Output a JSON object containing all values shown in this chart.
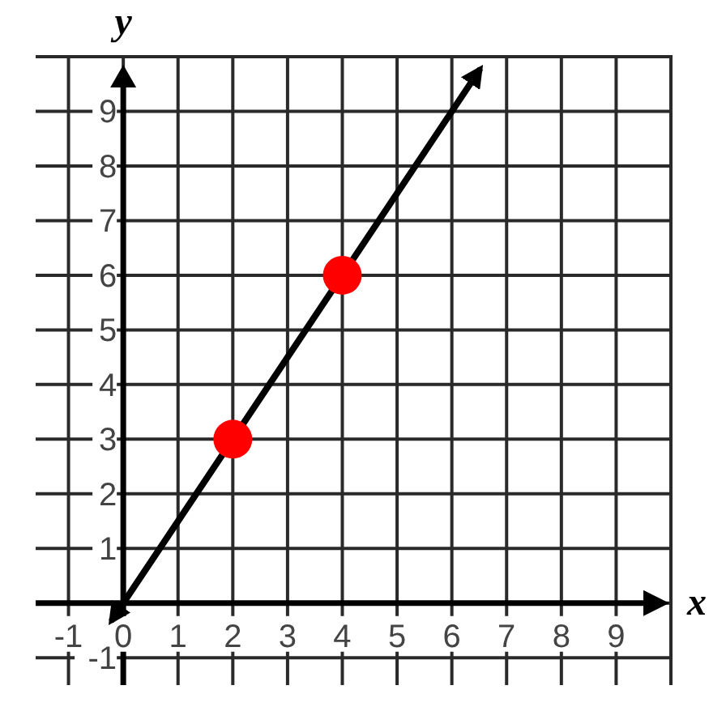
{
  "chart_data": {
    "type": "line",
    "xlabel": "x",
    "ylabel": "y",
    "xlim": [
      -1.6,
      10
    ],
    "ylim": [
      -1.5,
      10
    ],
    "xticks": [
      -1,
      0,
      1,
      2,
      3,
      4,
      5,
      6,
      7,
      8,
      9
    ],
    "yticks": [
      -1,
      {
        "value": 0,
        "label": null
      },
      1,
      2,
      3,
      4,
      5,
      6,
      7,
      8,
      9
    ],
    "grid": true,
    "series": [
      {
        "color": "#000000",
        "x": [
          -0.2,
          6.5
        ],
        "values": [
          -0.3,
          9.75
        ]
      },
      {
        "type": "scatter",
        "color": "#ff0000",
        "x": [
          2,
          4
        ],
        "values": [
          3,
          6
        ],
        "marker": "circle"
      }
    ]
  }
}
